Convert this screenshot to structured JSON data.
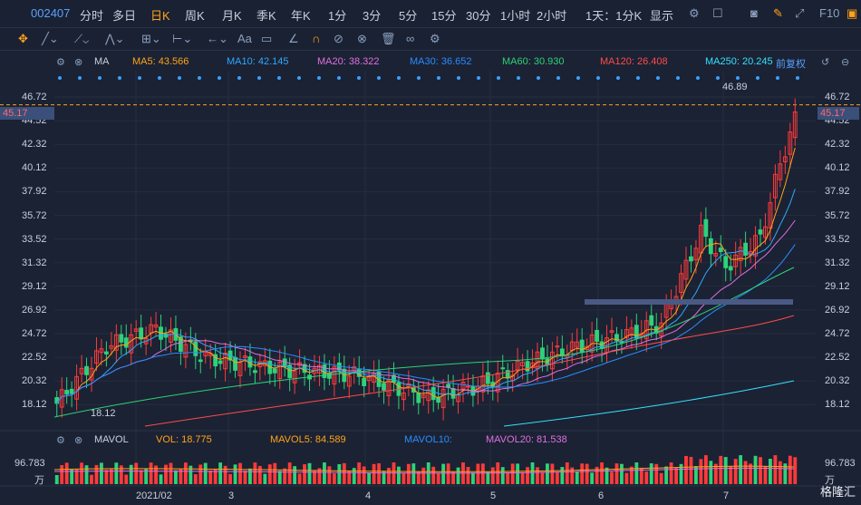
{
  "toolbar": {
    "code": "002407",
    "items": [
      "分时",
      "多日",
      "日K",
      "周K",
      "月K",
      "季K",
      "年K",
      "1分",
      "3分",
      "5分",
      "15分",
      "30分",
      "1小时",
      "2小时",
      "1天：1分K",
      "显示"
    ],
    "active": "日K",
    "fq": "F10"
  },
  "draw_tools": [
    "move-icon",
    "line-icon",
    "trend-icon",
    "zigzag-icon",
    "range-icon",
    "arrow-icon",
    "text-icon",
    "comment-icon",
    "ruler-icon",
    "magnet-icon",
    "lock-icon",
    "hide-icon",
    "trash-icon",
    "link-icon",
    "settings-icon"
  ],
  "ma_legend": {
    "label": "MA",
    "items": [
      {
        "text": "MA5: 43.566",
        "color": "#ffa31a"
      },
      {
        "text": "MA10: 42.145",
        "color": "#2fa8ff"
      },
      {
        "text": "MA20: 38.322",
        "color": "#e070e0"
      },
      {
        "text": "MA30: 36.652",
        "color": "#2a8cff"
      },
      {
        "text": "MA60: 30.930",
        "color": "#2ed27a"
      },
      {
        "text": "MA120: 26.408",
        "color": "#ff4b4b"
      },
      {
        "text": "MA250: 20.245",
        "color": "#35e0ff"
      }
    ],
    "fq_label": "前复权"
  },
  "price_axis": [
    "46.72",
    "44.52",
    "42.32",
    "40.12",
    "37.92",
    "35.72",
    "33.52",
    "31.32",
    "29.12",
    "26.92",
    "24.72",
    "22.52",
    "20.32",
    "18.12"
  ],
  "current_price": "45.17",
  "high_label": "46.89",
  "low_label": "18.12",
  "vol_legend": {
    "label": "MAVOL",
    "vol": "VOL: 18.775",
    "mavol5": "MAVOL5: 84.589",
    "mavol10": "MAVOL10:",
    "mavol20": "MAVOL20: 81.538"
  },
  "vol_axis": [
    "96.783",
    "万"
  ],
  "x_labels": [
    "2021/02",
    "3",
    "4",
    "5",
    "6",
    "7"
  ],
  "brand": "格隆汇",
  "colors": {
    "up": "#ff3a3a",
    "down": "#2ed27a",
    "bg": "#1b2233",
    "accent": "#ffa31a"
  },
  "chart_data": {
    "type": "candlestick",
    "ylim": [
      17.0,
      48.0
    ],
    "ma_values_last": {
      "MA5": 43.566,
      "MA10": 42.145,
      "MA20": 38.322,
      "MA30": 36.652,
      "MA60": 30.93,
      "MA120": 26.408,
      "MA250": 20.245
    },
    "high": 46.89,
    "low": 18.12,
    "last": 45.17,
    "volume_max": 96.783
  }
}
